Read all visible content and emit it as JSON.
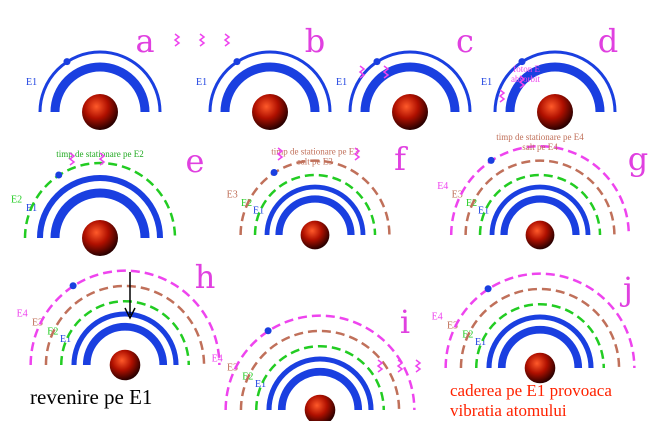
{
  "panels": [
    {
      "letter": "a",
      "levels": [
        "E1"
      ],
      "notes": []
    },
    {
      "letter": "b",
      "levels": [
        "E1"
      ],
      "notes": []
    },
    {
      "letter": "c",
      "levels": [
        "E1"
      ],
      "notes": []
    },
    {
      "letter": "d",
      "levels": [
        "E1"
      ],
      "notes": [
        "foton E",
        "absorbit"
      ]
    },
    {
      "letter": "e",
      "levels": [
        "E1",
        "E2"
      ],
      "notes": [
        "timp de stationare pe E2"
      ]
    },
    {
      "letter": "f",
      "levels": [
        "E1",
        "E2",
        "E3"
      ],
      "notes": [
        "timp de stationare pe E3",
        "salt pe E3"
      ]
    },
    {
      "letter": "g",
      "levels": [
        "E1",
        "E2",
        "E3",
        "E4"
      ],
      "notes": [
        "timp de stationare pe E4",
        "salt pe E4"
      ]
    },
    {
      "letter": "h",
      "levels": [
        "E1",
        "E2",
        "E3",
        "E4"
      ],
      "notes": [],
      "caption": [
        "revenire pe  E1"
      ]
    },
    {
      "letter": "i",
      "levels": [
        "E1",
        "E2",
        "E3",
        "E4"
      ],
      "notes": []
    },
    {
      "letter": "j",
      "levels": [
        "E1",
        "E2",
        "E3",
        "E4"
      ],
      "notes": [],
      "caption": [
        "caderea pe E1 provoaca",
        "vibratia atomului"
      ]
    }
  ]
}
